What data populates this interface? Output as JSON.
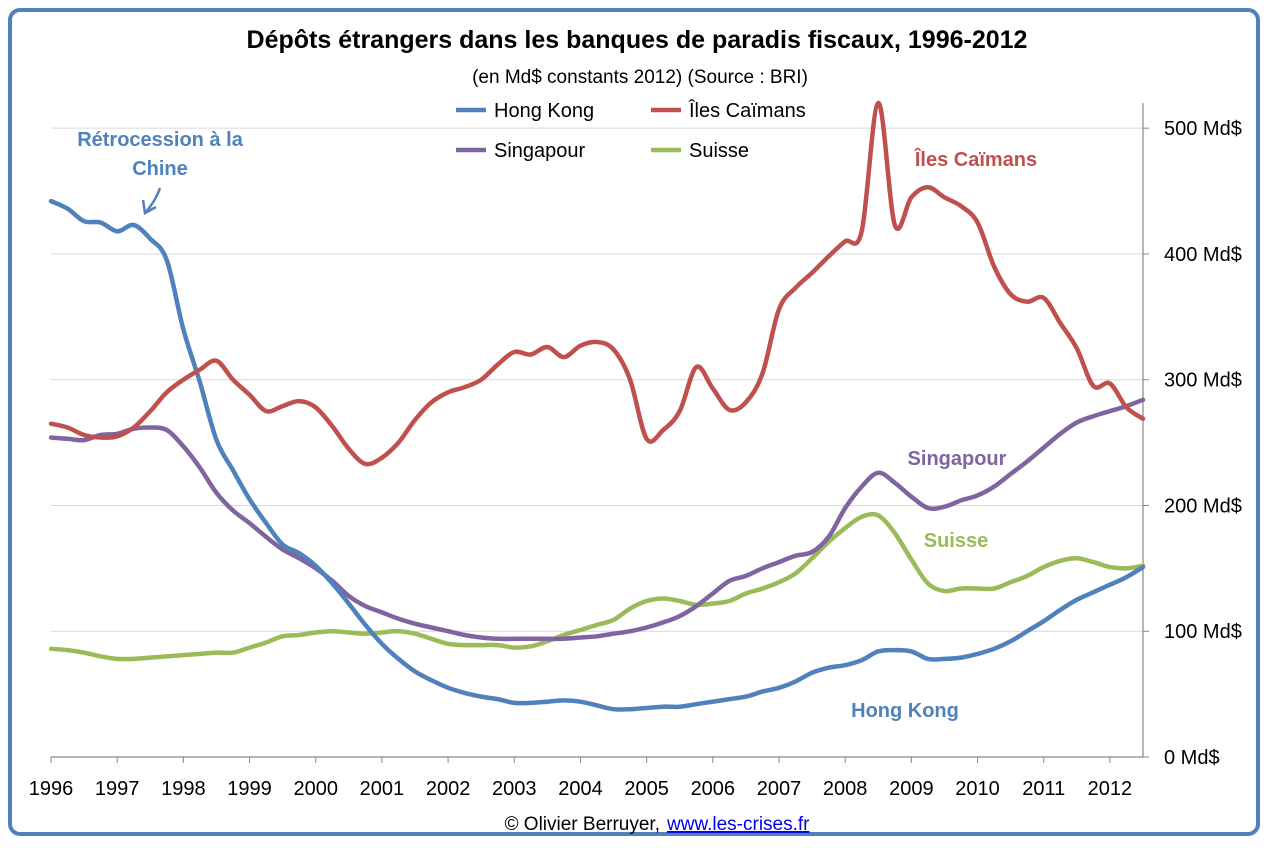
{
  "chart_data": {
    "type": "line",
    "title": "Dépôts étrangers dans les banques de paradis fiscaux, 1996-2012",
    "subtitle": "(en Md$ constants 2012) (Source : BRI)",
    "xlabel": "",
    "ylabel": "",
    "xlim": [
      1996,
      2012.5
    ],
    "ylim": [
      0,
      520
    ],
    "y_ticks": [
      {
        "value": 0,
        "label": "0 Md$"
      },
      {
        "value": 100,
        "label": "100 Md$"
      },
      {
        "value": 200,
        "label": "200 Md$"
      },
      {
        "value": 300,
        "label": "300 Md$"
      },
      {
        "value": 400,
        "label": "400 Md$"
      },
      {
        "value": 500,
        "label": "500 Md$"
      }
    ],
    "x_ticks": [
      "1996",
      "1997",
      "1998",
      "1999",
      "2000",
      "2001",
      "2002",
      "2003",
      "2004",
      "2005",
      "2006",
      "2007",
      "2008",
      "2009",
      "2010",
      "2011",
      "2012"
    ],
    "y_axis_side": "right",
    "grid": true,
    "legend_position": "top-center",
    "series": [
      {
        "name": "Hong Kong",
        "color": "#4f81bd",
        "points": [
          [
            1996,
            442
          ],
          [
            1996.25,
            436
          ],
          [
            1996.5,
            426
          ],
          [
            1996.75,
            425
          ],
          [
            1997,
            418
          ],
          [
            1997.25,
            423
          ],
          [
            1997.5,
            412
          ],
          [
            1997.75,
            395
          ],
          [
            1998,
            340
          ],
          [
            1998.25,
            298
          ],
          [
            1998.5,
            252
          ],
          [
            1998.75,
            228
          ],
          [
            1999,
            205
          ],
          [
            1999.25,
            186
          ],
          [
            1999.5,
            169
          ],
          [
            1999.75,
            162
          ],
          [
            2000,
            152
          ],
          [
            2000.25,
            138
          ],
          [
            2000.5,
            122
          ],
          [
            2000.75,
            105
          ],
          [
            2001,
            90
          ],
          [
            2001.25,
            78
          ],
          [
            2001.5,
            68
          ],
          [
            2001.75,
            61
          ],
          [
            2002,
            55
          ],
          [
            2002.25,
            51
          ],
          [
            2002.5,
            48
          ],
          [
            2002.75,
            46
          ],
          [
            2003,
            43
          ],
          [
            2003.25,
            43
          ],
          [
            2003.5,
            44
          ],
          [
            2003.75,
            45
          ],
          [
            2004,
            44
          ],
          [
            2004.25,
            41
          ],
          [
            2004.5,
            38
          ],
          [
            2004.75,
            38
          ],
          [
            2005,
            39
          ],
          [
            2005.25,
            40
          ],
          [
            2005.5,
            40
          ],
          [
            2005.75,
            42
          ],
          [
            2006,
            44
          ],
          [
            2006.25,
            46
          ],
          [
            2006.5,
            48
          ],
          [
            2006.75,
            52
          ],
          [
            2007,
            55
          ],
          [
            2007.25,
            60
          ],
          [
            2007.5,
            67
          ],
          [
            2007.75,
            71
          ],
          [
            2008,
            73
          ],
          [
            2008.25,
            77
          ],
          [
            2008.5,
            84
          ],
          [
            2008.75,
            85
          ],
          [
            2009,
            84
          ],
          [
            2009.25,
            78
          ],
          [
            2009.5,
            78
          ],
          [
            2009.75,
            79
          ],
          [
            2010,
            82
          ],
          [
            2010.25,
            86
          ],
          [
            2010.5,
            92
          ],
          [
            2010.75,
            100
          ],
          [
            2011,
            108
          ],
          [
            2011.25,
            117
          ],
          [
            2011.5,
            125
          ],
          [
            2011.75,
            131
          ],
          [
            2012,
            137
          ],
          [
            2012.25,
            143
          ],
          [
            2012.5,
            151
          ]
        ]
      },
      {
        "name": "Îles Caïmans",
        "color": "#c0504d",
        "points": [
          [
            1996,
            265
          ],
          [
            1996.25,
            262
          ],
          [
            1996.5,
            256
          ],
          [
            1996.75,
            254
          ],
          [
            1997,
            255
          ],
          [
            1997.25,
            262
          ],
          [
            1997.5,
            275
          ],
          [
            1997.75,
            290
          ],
          [
            1998,
            300
          ],
          [
            1998.25,
            308
          ],
          [
            1998.5,
            315
          ],
          [
            1998.75,
            300
          ],
          [
            1999,
            288
          ],
          [
            1999.25,
            275
          ],
          [
            1999.5,
            279
          ],
          [
            1999.75,
            283
          ],
          [
            2000,
            278
          ],
          [
            2000.25,
            263
          ],
          [
            2000.5,
            245
          ],
          [
            2000.75,
            233
          ],
          [
            2001,
            238
          ],
          [
            2001.25,
            250
          ],
          [
            2001.5,
            268
          ],
          [
            2001.75,
            282
          ],
          [
            2002,
            290
          ],
          [
            2002.25,
            294
          ],
          [
            2002.5,
            300
          ],
          [
            2002.75,
            312
          ],
          [
            2003,
            322
          ],
          [
            2003.25,
            320
          ],
          [
            2003.5,
            326
          ],
          [
            2003.75,
            318
          ],
          [
            2004,
            327
          ],
          [
            2004.25,
            330
          ],
          [
            2004.5,
            324
          ],
          [
            2004.75,
            300
          ],
          [
            2005,
            253
          ],
          [
            2005.25,
            260
          ],
          [
            2005.5,
            275
          ],
          [
            2005.75,
            310
          ],
          [
            2006,
            293
          ],
          [
            2006.25,
            276
          ],
          [
            2006.5,
            282
          ],
          [
            2006.75,
            305
          ],
          [
            2007,
            356
          ],
          [
            2007.25,
            373
          ],
          [
            2007.5,
            385
          ],
          [
            2007.75,
            398
          ],
          [
            2008,
            410
          ],
          [
            2008.25,
            418
          ],
          [
            2008.5,
            520
          ],
          [
            2008.75,
            423
          ],
          [
            2009,
            445
          ],
          [
            2009.25,
            453
          ],
          [
            2009.5,
            445
          ],
          [
            2009.75,
            438
          ],
          [
            2010,
            425
          ],
          [
            2010.25,
            390
          ],
          [
            2010.5,
            368
          ],
          [
            2010.75,
            362
          ],
          [
            2011,
            365
          ],
          [
            2011.25,
            345
          ],
          [
            2011.5,
            325
          ],
          [
            2011.75,
            295
          ],
          [
            2012,
            297
          ],
          [
            2012.25,
            278
          ],
          [
            2012.5,
            269
          ]
        ]
      },
      {
        "name": "Singapour",
        "color": "#8064a2",
        "points": [
          [
            1996,
            254
          ],
          [
            1996.25,
            253
          ],
          [
            1996.5,
            252
          ],
          [
            1996.75,
            256
          ],
          [
            1997,
            257
          ],
          [
            1997.25,
            261
          ],
          [
            1997.5,
            262
          ],
          [
            1997.75,
            260
          ],
          [
            1998,
            247
          ],
          [
            1998.25,
            230
          ],
          [
            1998.5,
            210
          ],
          [
            1998.75,
            196
          ],
          [
            1999,
            186
          ],
          [
            1999.25,
            175
          ],
          [
            1999.5,
            165
          ],
          [
            1999.75,
            158
          ],
          [
            2000,
            150
          ],
          [
            2000.25,
            140
          ],
          [
            2000.5,
            128
          ],
          [
            2000.75,
            120
          ],
          [
            2001,
            115
          ],
          [
            2001.25,
            110
          ],
          [
            2001.5,
            106
          ],
          [
            2001.75,
            103
          ],
          [
            2002,
            100
          ],
          [
            2002.25,
            97
          ],
          [
            2002.5,
            95
          ],
          [
            2002.75,
            94
          ],
          [
            2003,
            94
          ],
          [
            2003.25,
            94
          ],
          [
            2003.5,
            94
          ],
          [
            2003.75,
            94
          ],
          [
            2004,
            95
          ],
          [
            2004.25,
            96
          ],
          [
            2004.5,
            98
          ],
          [
            2004.75,
            100
          ],
          [
            2005,
            103
          ],
          [
            2005.25,
            107
          ],
          [
            2005.5,
            112
          ],
          [
            2005.75,
            120
          ],
          [
            2006,
            130
          ],
          [
            2006.25,
            140
          ],
          [
            2006.5,
            144
          ],
          [
            2006.75,
            150
          ],
          [
            2007,
            155
          ],
          [
            2007.25,
            160
          ],
          [
            2007.5,
            163
          ],
          [
            2007.75,
            175
          ],
          [
            2008,
            198
          ],
          [
            2008.25,
            215
          ],
          [
            2008.5,
            226
          ],
          [
            2008.75,
            218
          ],
          [
            2009,
            207
          ],
          [
            2009.25,
            198
          ],
          [
            2009.5,
            199
          ],
          [
            2009.75,
            204
          ],
          [
            2010,
            208
          ],
          [
            2010.25,
            215
          ],
          [
            2010.5,
            225
          ],
          [
            2010.75,
            235
          ],
          [
            2011,
            246
          ],
          [
            2011.25,
            257
          ],
          [
            2011.5,
            266
          ],
          [
            2011.75,
            271
          ],
          [
            2012,
            275
          ],
          [
            2012.25,
            279
          ],
          [
            2012.5,
            284
          ]
        ]
      },
      {
        "name": "Suisse",
        "color": "#9bbb59",
        "points": [
          [
            1996,
            86
          ],
          [
            1996.25,
            85
          ],
          [
            1996.5,
            83
          ],
          [
            1996.75,
            80
          ],
          [
            1997,
            78
          ],
          [
            1997.25,
            78
          ],
          [
            1997.5,
            79
          ],
          [
            1997.75,
            80
          ],
          [
            1998,
            81
          ],
          [
            1998.25,
            82
          ],
          [
            1998.5,
            83
          ],
          [
            1998.75,
            83
          ],
          [
            1999,
            87
          ],
          [
            1999.25,
            91
          ],
          [
            1999.5,
            96
          ],
          [
            1999.75,
            97
          ],
          [
            2000,
            99
          ],
          [
            2000.25,
            100
          ],
          [
            2000.5,
            99
          ],
          [
            2000.75,
            98
          ],
          [
            2001,
            99
          ],
          [
            2001.25,
            100
          ],
          [
            2001.5,
            98
          ],
          [
            2001.75,
            94
          ],
          [
            2002,
            90
          ],
          [
            2002.25,
            89
          ],
          [
            2002.5,
            89
          ],
          [
            2002.75,
            89
          ],
          [
            2003,
            87
          ],
          [
            2003.25,
            88
          ],
          [
            2003.5,
            92
          ],
          [
            2003.75,
            97
          ],
          [
            2004,
            101
          ],
          [
            2004.25,
            105
          ],
          [
            2004.5,
            109
          ],
          [
            2004.75,
            118
          ],
          [
            2005,
            124
          ],
          [
            2005.25,
            126
          ],
          [
            2005.5,
            124
          ],
          [
            2005.75,
            121
          ],
          [
            2006,
            122
          ],
          [
            2006.25,
            124
          ],
          [
            2006.5,
            130
          ],
          [
            2006.75,
            134
          ],
          [
            2007,
            139
          ],
          [
            2007.25,
            146
          ],
          [
            2007.5,
            158
          ],
          [
            2007.75,
            171
          ],
          [
            2008,
            182
          ],
          [
            2008.25,
            191
          ],
          [
            2008.5,
            192
          ],
          [
            2008.75,
            178
          ],
          [
            2009,
            157
          ],
          [
            2009.25,
            138
          ],
          [
            2009.5,
            132
          ],
          [
            2009.75,
            134
          ],
          [
            2010,
            134
          ],
          [
            2010.25,
            134
          ],
          [
            2010.5,
            139
          ],
          [
            2010.75,
            144
          ],
          [
            2011,
            151
          ],
          [
            2011.25,
            156
          ],
          [
            2011.5,
            158
          ],
          [
            2011.75,
            155
          ],
          [
            2012,
            151
          ],
          [
            2012.25,
            150
          ],
          [
            2012.5,
            152
          ]
        ]
      }
    ],
    "annotations": [
      {
        "text": "Rétrocession à la",
        "color": "#4f81bd"
      },
      {
        "text": "Chine",
        "color": "#4f81bd"
      },
      {
        "text": "Îles Caïmans",
        "color": "#c0504d"
      },
      {
        "text": "Singapour",
        "color": "#8064a2"
      },
      {
        "text": "Suisse",
        "color": "#9bbb59"
      },
      {
        "text": "Hong Kong",
        "color": "#4f81bd"
      }
    ]
  },
  "credit": {
    "author": "© Olivier Berruyer,",
    "link": "www.les-crises.fr"
  },
  "colors": {
    "frame": "#4f81bd",
    "grid": "#d9d9d9",
    "axis": "#868686"
  }
}
